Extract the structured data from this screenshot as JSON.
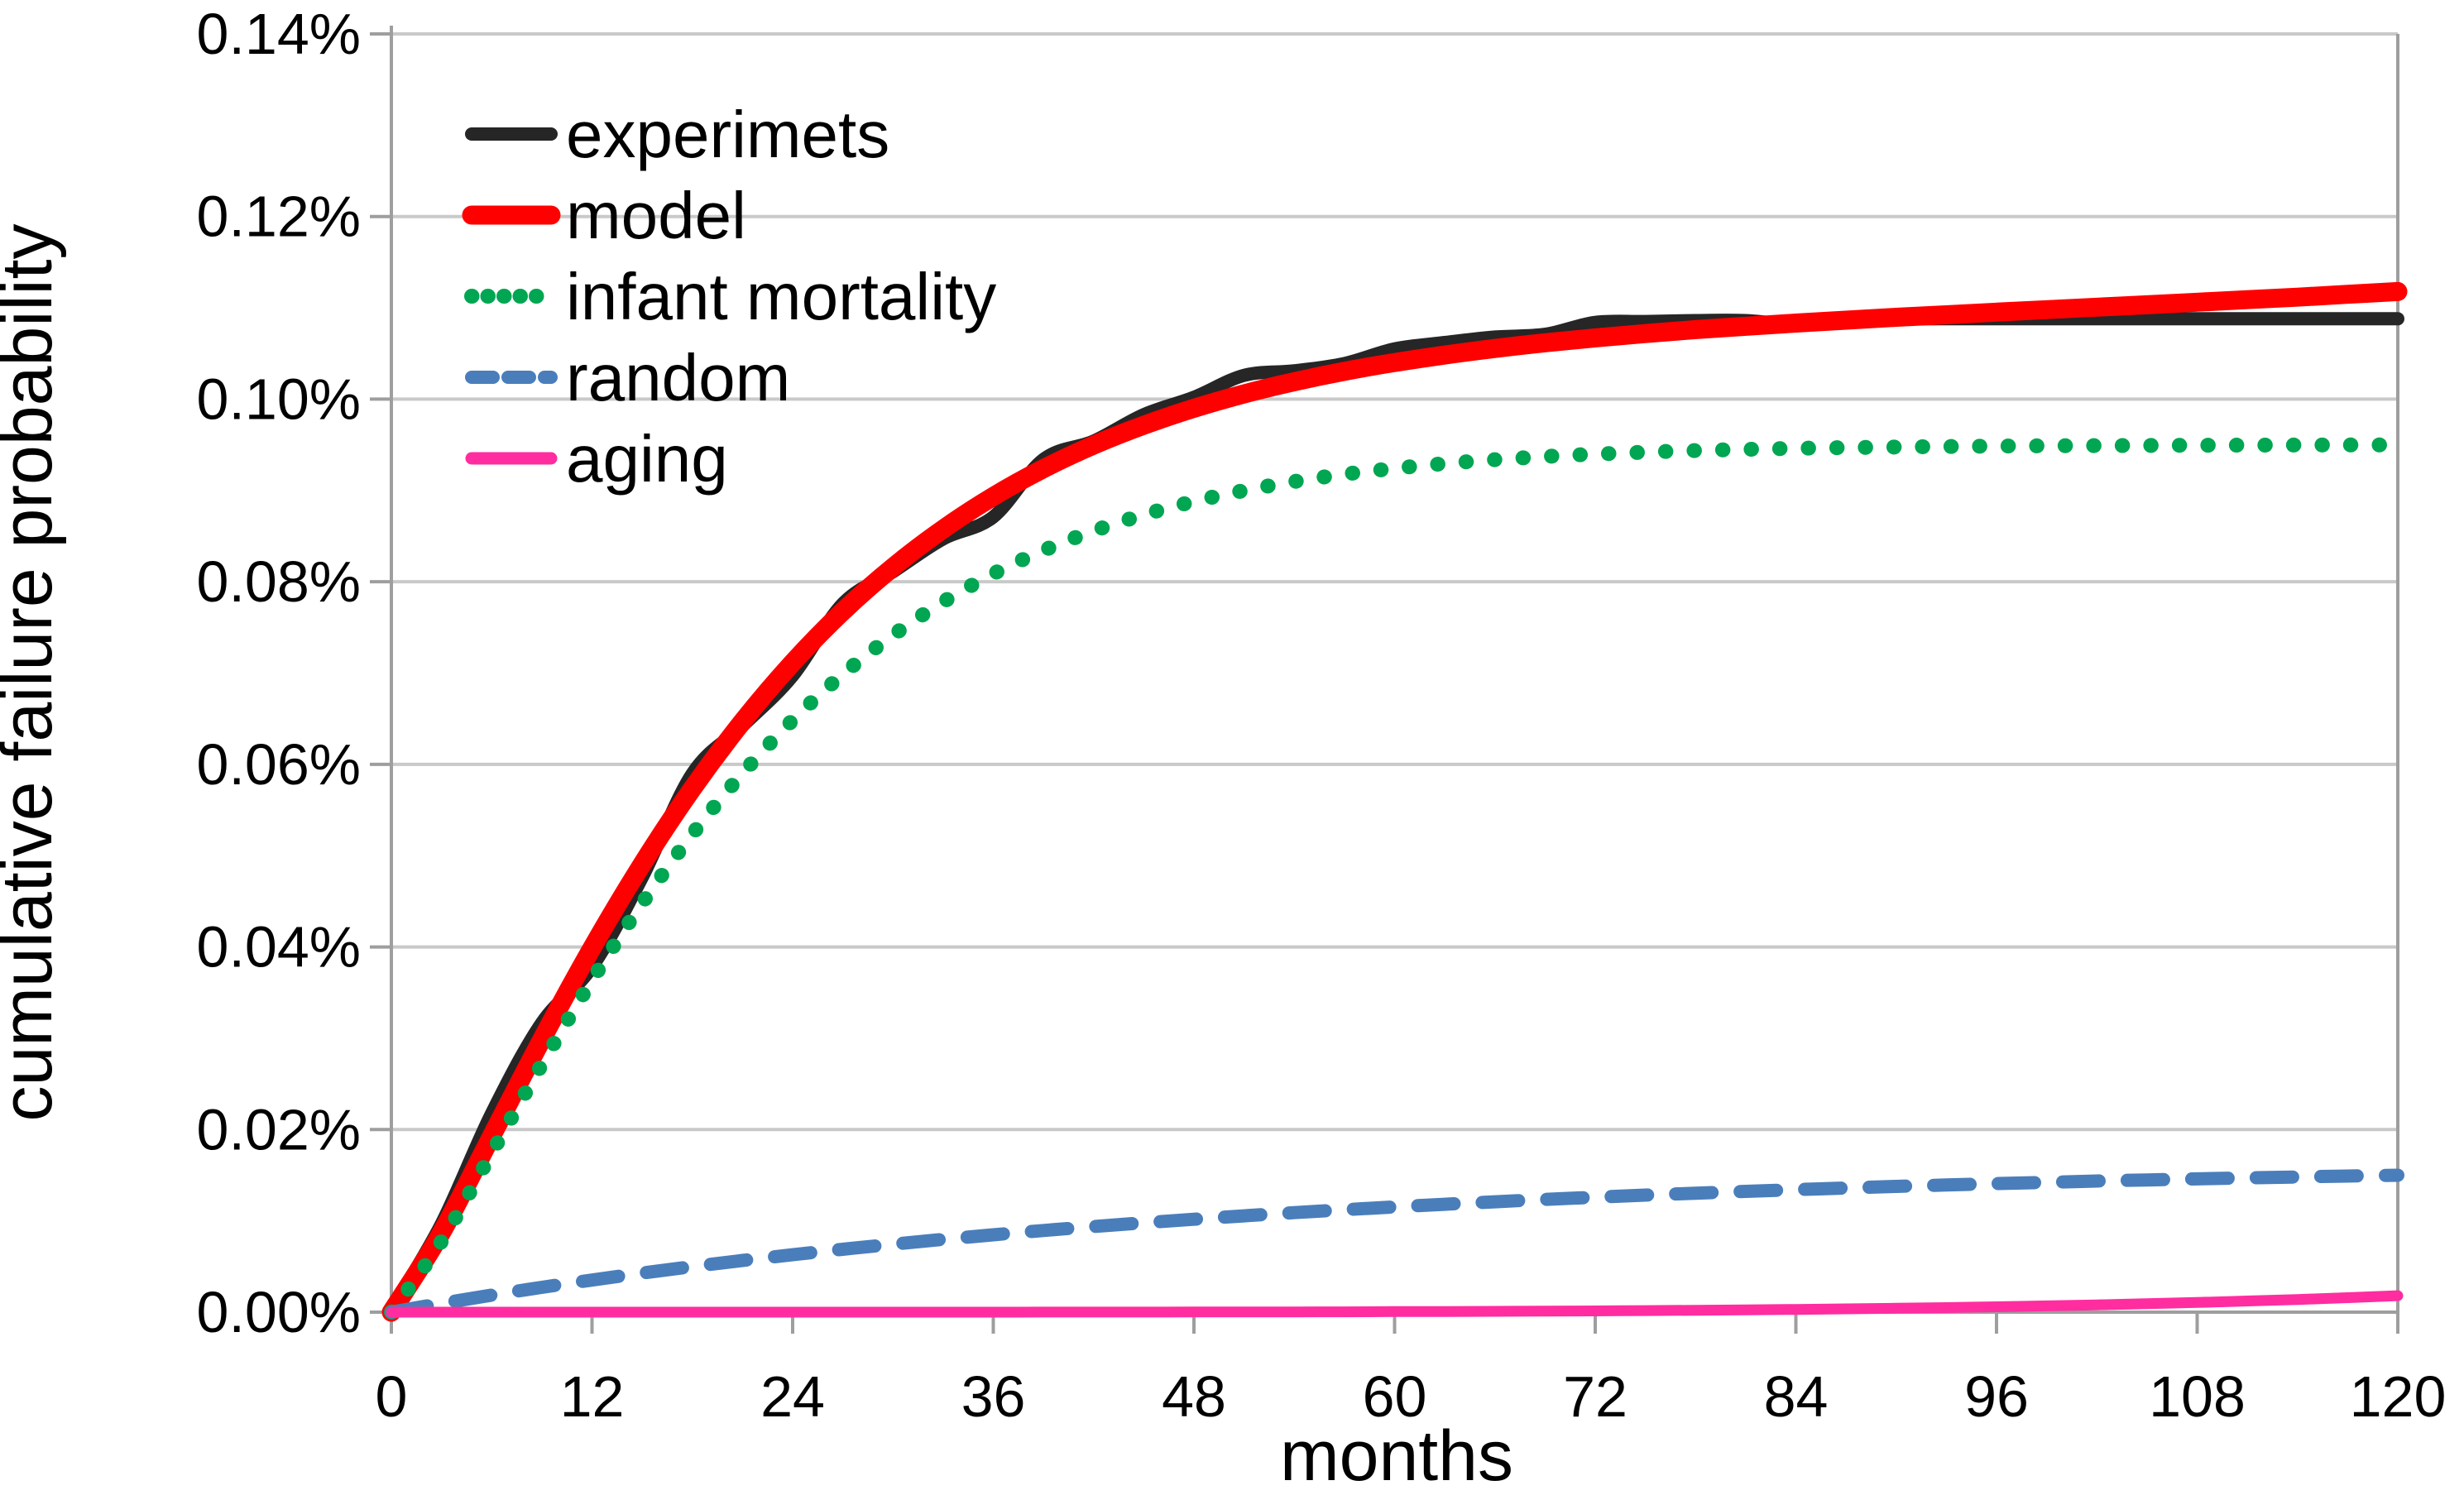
{
  "figure": {
    "background": "#ffffff"
  },
  "chart_data": {
    "type": "line",
    "title": "",
    "xlabel": "months",
    "ylabel": "cumulative failure probability",
    "xlim": [
      0,
      120
    ],
    "ylim_pct": [
      0,
      0.14
    ],
    "grid": "horizontal",
    "legend_position": "upper-left-inside",
    "x_ticks": [
      0,
      12,
      24,
      36,
      48,
      60,
      72,
      84,
      96,
      108,
      120
    ],
    "x_tick_labels": [
      "0",
      "12",
      "24",
      "36",
      "48",
      "60",
      "72",
      "84",
      "96",
      "108",
      "120"
    ],
    "y_ticks_pct": [
      0.0,
      0.02,
      0.04,
      0.06,
      0.08,
      0.1,
      0.12,
      0.14
    ],
    "y_tick_labels": [
      "0.00%",
      "0.02%",
      "0.04%",
      "0.06%",
      "0.08%",
      "0.10%",
      "0.12%",
      "0.14%"
    ],
    "x": [
      0,
      3,
      6,
      9,
      12,
      15,
      18,
      21,
      24,
      27,
      30,
      33,
      36,
      39,
      42,
      45,
      48,
      51,
      54,
      57,
      60,
      63,
      66,
      69,
      72,
      75,
      78,
      81,
      84,
      87,
      90,
      93,
      96,
      99,
      102,
      105,
      108,
      111,
      114,
      117,
      120
    ],
    "series": [
      {
        "name": "experimets",
        "color": "#262626",
        "style": "solid",
        "width": 16,
        "values_pct": [
          0.0003,
          0.0097,
          0.0218,
          0.0317,
          0.0378,
          0.0476,
          0.059,
          0.0642,
          0.0697,
          0.0776,
          0.0811,
          0.0847,
          0.0871,
          0.0934,
          0.0954,
          0.0983,
          0.1002,
          0.1026,
          0.1031,
          0.1039,
          0.1055,
          0.1062,
          0.1068,
          0.1071,
          0.1084,
          0.1085,
          0.1086,
          0.1086,
          0.1082,
          0.1087,
          0.1088,
          0.1088,
          0.1088,
          0.1088,
          0.1088,
          0.1088,
          0.1088,
          0.1088,
          0.1088,
          0.1088,
          0.1088
        ]
      },
      {
        "name": "model",
        "color": "#ff0000",
        "style": "solid",
        "width": 23,
        "values_pct": [
          0,
          0.00872,
          0.01931,
          0.02988,
          0.03988,
          0.04906,
          0.05734,
          0.06468,
          0.07113,
          0.07675,
          0.08159,
          0.08576,
          0.08934,
          0.09238,
          0.09496,
          0.09714,
          0.099,
          0.10057,
          0.10191,
          0.10305,
          0.10401,
          0.10483,
          0.10555,
          0.10617,
          0.10671,
          0.10718,
          0.10761,
          0.10798,
          0.10833,
          0.10865,
          0.10896,
          0.10924,
          0.10953,
          0.1098,
          0.11007,
          0.11033,
          0.11061,
          0.11089,
          0.11117,
          0.11148,
          0.11178
        ]
      },
      {
        "name": "infant mortality",
        "color": "#00a651",
        "style": "dotted",
        "width": 18,
        "values_pct": [
          0,
          0.00776,
          0.01744,
          0.02716,
          0.03636,
          0.04478,
          0.05235,
          0.05902,
          0.06484,
          0.06986,
          0.07415,
          0.07779,
          0.08087,
          0.08343,
          0.08557,
          0.08734,
          0.0888,
          0.08999,
          0.09098,
          0.09178,
          0.09242,
          0.09294,
          0.09337,
          0.09371,
          0.09398,
          0.09419,
          0.09437,
          0.0945,
          0.09461,
          0.09469,
          0.09476,
          0.09481,
          0.09486,
          0.09489,
          0.09491,
          0.09493,
          0.09495,
          0.09496,
          0.09497,
          0.09498,
          0.09498
        ]
      },
      {
        "name": "random",
        "color": "#4a7ebb",
        "style": "dashed",
        "width": 16,
        "values_pct": [
          0,
          0.00096,
          0.00187,
          0.00272,
          0.00352,
          0.00428,
          0.00499,
          0.00566,
          0.00629,
          0.00689,
          0.00744,
          0.00797,
          0.00847,
          0.00894,
          0.00938,
          0.00979,
          0.01018,
          0.01055,
          0.0109,
          0.01122,
          0.01153,
          0.01182,
          0.01209,
          0.01235,
          0.01259,
          0.01282,
          0.01303,
          0.01323,
          0.01342,
          0.0136,
          0.01377,
          0.01393,
          0.01408,
          0.01422,
          0.01436,
          0.01448,
          0.0146,
          0.01471,
          0.01481,
          0.01491,
          0.015
        ]
      },
      {
        "name": "aging",
        "color": "#ff2da0",
        "style": "solid",
        "width": 13,
        "values_pct": [
          0,
          0,
          0,
          0,
          0,
          0,
          0,
          0,
          0,
          0,
          0,
          0,
          0,
          1e-05,
          1e-05,
          1e-05,
          2e-05,
          2e-05,
          3e-05,
          4e-05,
          6e-05,
          7e-05,
          9e-05,
          0.00011,
          0.00014,
          0.00017,
          0.00021,
          0.00025,
          0.0003,
          0.00036,
          0.00043,
          0.0005,
          0.00059,
          0.00069,
          0.0008,
          0.00092,
          0.00106,
          0.00122,
          0.00139,
          0.00159,
          0.0018
        ]
      }
    ]
  },
  "chart_style": {
    "gridline_color": "#c9c9c9",
    "axis_color": "#9e9e9e",
    "text_color": "#000000"
  }
}
